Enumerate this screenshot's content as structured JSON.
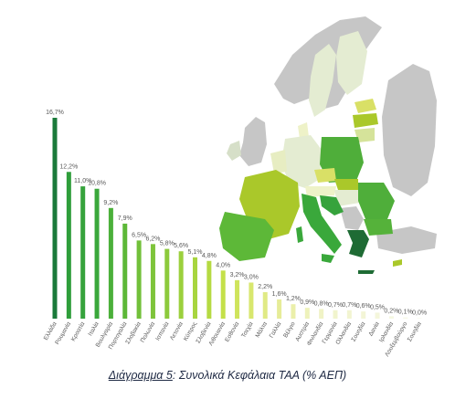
{
  "chart_data": {
    "type": "bar",
    "title": "",
    "xlabel": "",
    "ylabel": "",
    "ylim": [
      0,
      16.7
    ],
    "grid": false,
    "legend": "none",
    "categories": [
      "Ελλάδα",
      "Ρουμανία",
      "Κροατία",
      "Ιταλία",
      "Βουλγαρία",
      "Πορτογαλία",
      "Σλοβακία",
      "Πολωνία",
      "Ισπανία",
      "Λετονία",
      "Κύπρος",
      "Σλοβενία",
      "Λιθουανία",
      "Εσθονία",
      "Τσεχία",
      "Μάλτα",
      "Γαλλία",
      "Βέλγιο",
      "Αυστρία",
      "Φινλανδία",
      "Γερμανία",
      "Ολλανδία",
      "Σουηδία",
      "Δανία",
      "Ιρλανδία",
      "Λουξεμβούργο",
      "Σουηδία"
    ],
    "values": [
      16.7,
      12.2,
      11.0,
      10.8,
      9.2,
      7.9,
      6.5,
      6.2,
      5.8,
      5.6,
      5.1,
      4.8,
      4.0,
      3.2,
      3.0,
      2.2,
      1.6,
      1.2,
      0.9,
      0.8,
      0.7,
      0.7,
      0.6,
      0.5,
      0.2,
      0.1,
      0.0
    ],
    "value_labels": [
      "16,7%",
      "12,2%",
      "11,0%",
      "10,8%",
      "9,2%",
      "7,9%",
      "6,5%",
      "6,2%",
      "5,8%",
      "5,6%",
      "5,1%",
      "4,8%",
      "4,0%",
      "3,2%",
      "3,0%",
      "2,2%",
      "1,6%",
      "1,2%",
      "0,9%",
      "0,8%",
      "0,7%",
      "0,7%",
      "0,6%",
      "0,5%",
      "0,2%",
      "0,1%",
      "0,0%"
    ],
    "bar_colors": [
      "#1a7a3a",
      "#2f9e3b",
      "#36a33c",
      "#3aa83b",
      "#4bb03a",
      "#5db838",
      "#72c03a",
      "#7ec43b",
      "#8dca3c",
      "#9bd03d",
      "#a8d53f",
      "#b5da42",
      "#c4e049",
      "#cfe45c",
      "#d8e76f",
      "#e0ea85",
      "#e6ec98",
      "#ebefaa",
      "#eef2bb",
      "#f0f3c6",
      "#f1f4cd",
      "#f2f4d1",
      "#f3f5d6",
      "#f4f6db",
      "#f5f7e1",
      "#f6f8e6",
      "#f7f9ea"
    ]
  },
  "caption": {
    "prefix": "Διάγραμμα 5",
    "text": ": Συνολικά Κεφάλαια ΤΑΑ (% ΑΕΠ)"
  },
  "map": {
    "colors": {
      "dark_green": "#1e6b34",
      "mid_green": "#4fae3a",
      "lime": "#aac82a",
      "light_lime": "#d5e39a",
      "pale": "#e4ecd2",
      "yellow": "#d9e066",
      "non_eu_grey": "#c6c6c6"
    }
  }
}
